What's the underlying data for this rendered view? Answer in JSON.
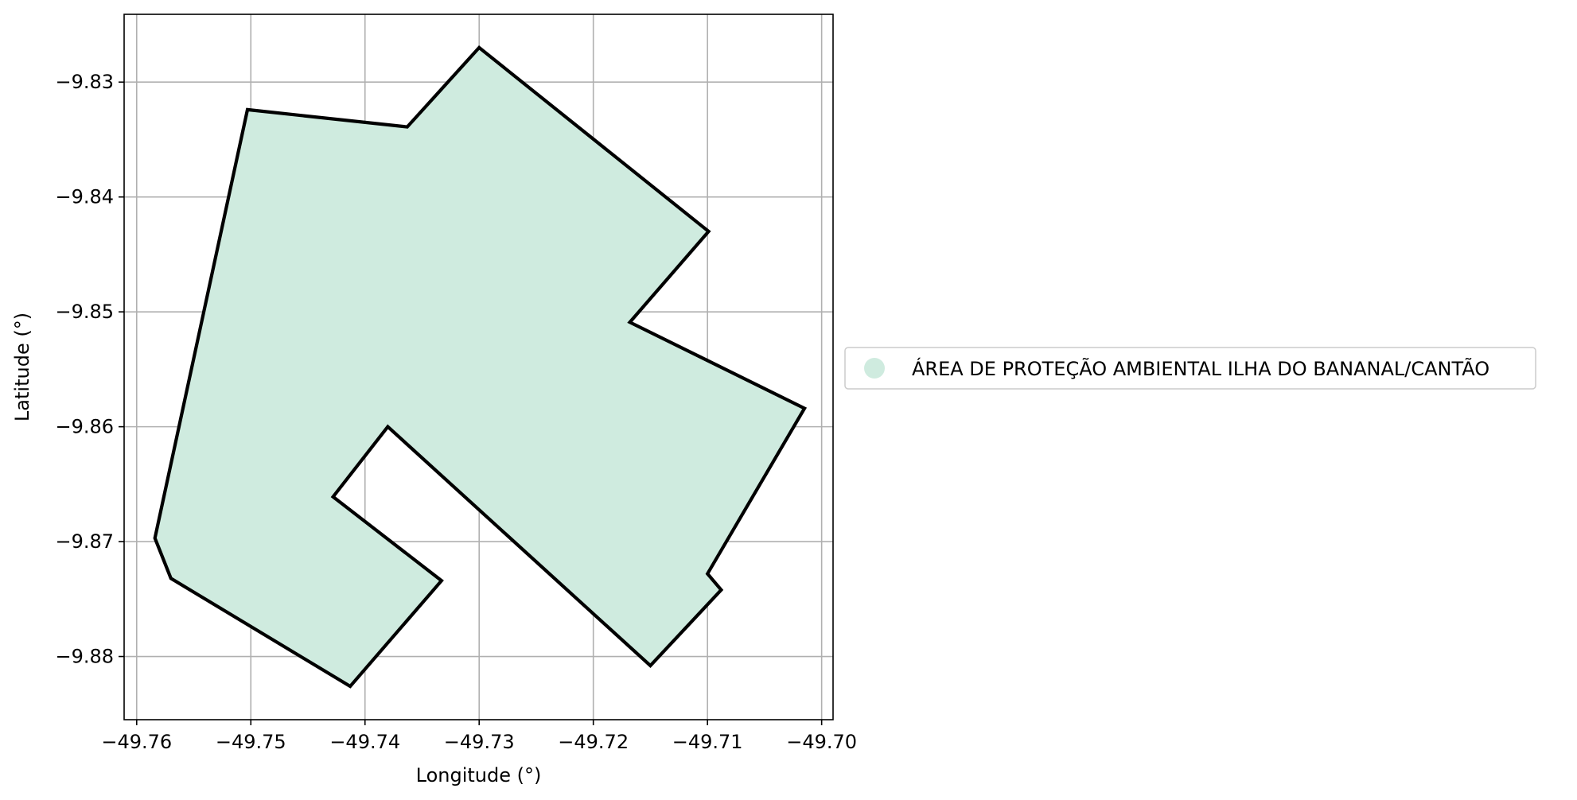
{
  "chart_data": {
    "type": "map",
    "xlabel": "Longitude (°)",
    "ylabel": "Latitude (°)",
    "xlim": [
      -49.7611,
      -49.699
    ],
    "ylim": [
      -9.8855,
      -9.8241
    ],
    "grid": true,
    "x_ticks": [
      -49.76,
      -49.75,
      -49.74,
      -49.73,
      -49.72,
      -49.71,
      -49.7
    ],
    "x_tick_labels": [
      "−49.76",
      "−49.75",
      "−49.74",
      "−49.73",
      "−49.72",
      "−49.71",
      "−49.70"
    ],
    "y_ticks": [
      -9.83,
      -9.84,
      -9.85,
      -9.86,
      -9.87,
      -9.88
    ],
    "y_tick_labels": [
      "−9.83",
      "−9.84",
      "−9.85",
      "−9.86",
      "−9.87",
      "−9.88"
    ],
    "legend_position": "right",
    "series": [
      {
        "name": "ÁREA DE PROTEÇÃO AMBIENTAL ILHA DO BANANAL/CANTÃO",
        "fill_color": "#cfebdf",
        "edge_color": "#000000",
        "polygon": [
          [
            -49.7503,
            -9.8324
          ],
          [
            -49.7363,
            -9.8339
          ],
          [
            -49.73,
            -9.827
          ],
          [
            -49.7099,
            -9.843
          ],
          [
            -49.7168,
            -9.8509
          ],
          [
            -49.7015,
            -9.8584
          ],
          [
            -49.71,
            -9.8728
          ],
          [
            -49.7088,
            -9.8742
          ],
          [
            -49.715,
            -9.8808
          ],
          [
            -49.738,
            -9.86
          ],
          [
            -49.7428,
            -9.8661
          ],
          [
            -49.7333,
            -9.8734
          ],
          [
            -49.7413,
            -9.8826
          ],
          [
            -49.757,
            -9.8732
          ],
          [
            -49.7584,
            -9.8697
          ]
        ]
      }
    ]
  }
}
